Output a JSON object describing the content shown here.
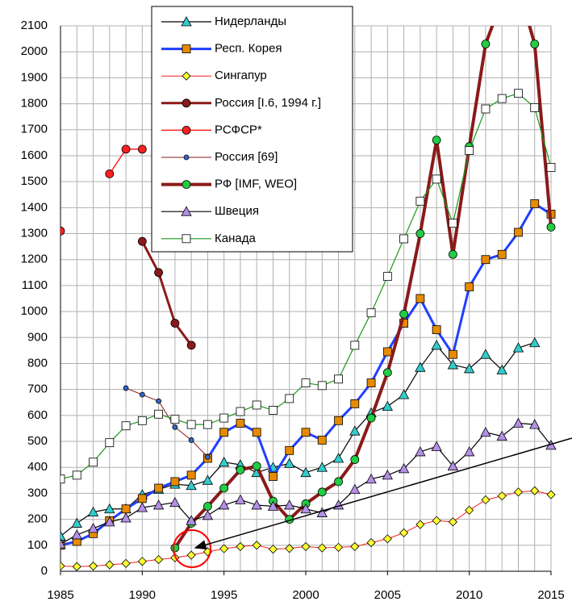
{
  "chart_data": {
    "type": "line",
    "x": [
      1985,
      1986,
      1987,
      1988,
      1989,
      1990,
      1991,
      1992,
      1993,
      1994,
      1995,
      1996,
      1997,
      1998,
      1999,
      2000,
      2001,
      2002,
      2003,
      2004,
      2005,
      2006,
      2007,
      2008,
      2009,
      2010,
      2011,
      2012,
      2013,
      2014,
      2015
    ],
    "xlim": [
      1985,
      2015
    ],
    "xticks": [
      1985,
      1990,
      1995,
      2000,
      2005,
      2010,
      2015
    ],
    "ylim": [
      0,
      2100
    ],
    "yticks": [
      0,
      100,
      200,
      300,
      400,
      500,
      600,
      700,
      800,
      900,
      1000,
      1100,
      1200,
      1300,
      1400,
      1500,
      1600,
      1700,
      1800,
      1900,
      2000,
      2100
    ],
    "grid": true,
    "legend": "top-center",
    "series": [
      {
        "name": "Нидерланды",
        "color": "#000000",
        "width": 1.2,
        "marker": "triangle",
        "marker_color": "#33cccc",
        "values": [
          135,
          185,
          228,
          240,
          240,
          295,
          315,
          335,
          330,
          350,
          420,
          410,
          380,
          400,
          415,
          380,
          400,
          435,
          540,
          610,
          635,
          680,
          785,
          870,
          795,
          780,
          835,
          775,
          860,
          880,
          null
        ]
      },
      {
        "name": "Респ. Корея",
        "color": "#1f3fff",
        "width": 3,
        "marker": "square",
        "marker_color": "#e68a00",
        "values": [
          100,
          115,
          145,
          195,
          240,
          280,
          320,
          345,
          370,
          435,
          535,
          570,
          535,
          365,
          465,
          535,
          505,
          580,
          645,
          725,
          845,
          955,
          1050,
          930,
          835,
          1095,
          1200,
          1220,
          1305,
          1415,
          1375
        ]
      },
      {
        "name": "Сингапур",
        "color": "#ff2020",
        "width": 1,
        "marker": "diamond",
        "marker_color": "#ffff33",
        "values": [
          20,
          18,
          20,
          25,
          30,
          38,
          45,
          52,
          62,
          75,
          87,
          95,
          100,
          85,
          88,
          95,
          90,
          92,
          95,
          110,
          125,
          148,
          180,
          195,
          190,
          235,
          275,
          290,
          305,
          310,
          295
        ]
      },
      {
        "name": "Россия [I.6, 1994 г.]",
        "color": "#8b1a1a",
        "width": 3,
        "marker": "circle",
        "marker_color": "#8b1a1a",
        "values": [
          null,
          null,
          null,
          null,
          null,
          1270,
          1150,
          955,
          870,
          null,
          null,
          null,
          null,
          null,
          null,
          null,
          null,
          null,
          null,
          null,
          null,
          null,
          null,
          null,
          null,
          null,
          null,
          null,
          null,
          null,
          null
        ]
      },
      {
        "name": "РСФСР*",
        "color": "#ff2020",
        "width": 1.5,
        "marker": "circle",
        "marker_color": "#ff2020",
        "values": [
          1310,
          null,
          null,
          1530,
          1625,
          1625,
          null,
          null,
          null,
          null,
          null,
          null,
          null,
          null,
          null,
          null,
          null,
          null,
          null,
          null,
          null,
          null,
          null,
          null,
          null,
          null,
          null,
          null,
          null,
          null,
          null
        ]
      },
      {
        "name": "Россия [69]",
        "color": "#8b1a1a",
        "width": 1,
        "marker": "smallcircle",
        "marker_color": "#3366cc",
        "values": [
          null,
          null,
          null,
          null,
          705,
          680,
          655,
          555,
          505,
          440,
          null,
          null,
          null,
          null,
          null,
          null,
          null,
          null,
          null,
          null,
          null,
          null,
          null,
          null,
          null,
          null,
          null,
          null,
          null,
          null,
          null
        ]
      },
      {
        "name": "РФ [IMF, WEO]",
        "color": "#8b1a1a",
        "width": 4,
        "marker": "circle",
        "marker_color": "#22cc44",
        "values": [
          null,
          null,
          null,
          null,
          null,
          null,
          null,
          90,
          185,
          250,
          320,
          390,
          405,
          270,
          200,
          260,
          305,
          345,
          430,
          590,
          765,
          990,
          1300,
          1660,
          1220,
          1635,
          2030,
          2200,
          2250,
          2030,
          1325
        ]
      },
      {
        "name": "Швеция",
        "color": "#000000",
        "width": 1.2,
        "marker": "triangle",
        "marker_color": "#b38fe6",
        "values": [
          105,
          140,
          165,
          190,
          205,
          245,
          255,
          265,
          195,
          215,
          255,
          275,
          255,
          250,
          255,
          240,
          225,
          255,
          315,
          355,
          370,
          395,
          460,
          480,
          405,
          460,
          535,
          520,
          570,
          565,
          485
        ]
      },
      {
        "name": "Канада",
        "color": "#1a991a",
        "width": 1.2,
        "marker": "square",
        "marker_color": "#ffffff",
        "values": [
          355,
          370,
          420,
          495,
          560,
          580,
          605,
          585,
          565,
          565,
          590,
          615,
          640,
          620,
          665,
          725,
          715,
          740,
          870,
          995,
          1135,
          1280,
          1425,
          1510,
          1340,
          1620,
          1780,
          1820,
          1840,
          1785,
          1555
        ]
      }
    ]
  }
}
